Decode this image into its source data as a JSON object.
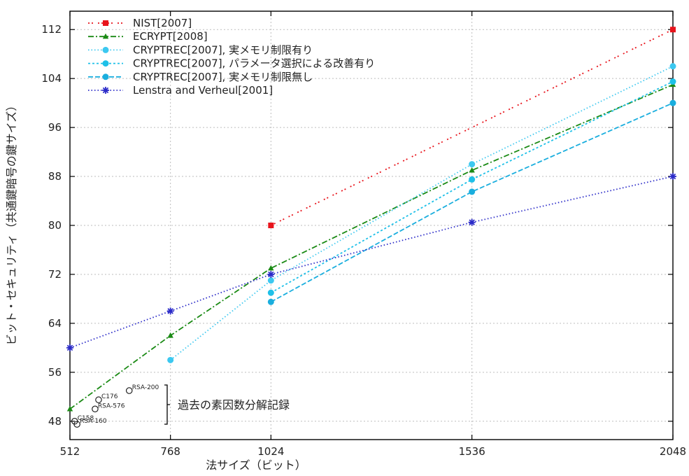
{
  "chart_data": {
    "type": "line",
    "xlabel": "法サイズ（ビット）",
    "ylabel": "ビット・セキュリティ（共通鍵暗号の鍵サイズ）",
    "x_ticks": [
      512,
      768,
      1024,
      1536,
      2048
    ],
    "y_ticks": [
      48,
      56,
      64,
      72,
      80,
      88,
      96,
      104,
      112
    ],
    "xlim": [
      512,
      2048
    ],
    "ylim": [
      45,
      115
    ],
    "grid": true,
    "legend_position": "top-left",
    "series": [
      {
        "name": "NIST[2007]",
        "color": "#e8141c",
        "marker": "square",
        "dash": "dotdot",
        "points": [
          [
            1024,
            80
          ],
          [
            2048,
            112
          ]
        ]
      },
      {
        "name": "ECRYPT[2008]",
        "color": "#1a8a14",
        "marker": "triangle",
        "dash": "dashdot",
        "points": [
          [
            512,
            50
          ],
          [
            768,
            62
          ],
          [
            1024,
            73
          ],
          [
            1536,
            89
          ],
          [
            2048,
            103
          ]
        ]
      },
      {
        "name": "CRYPTREC[2007], 実メモリ制限有り",
        "color": "#3cc8f0",
        "marker": "circle",
        "dash": "dot",
        "points": [
          [
            768,
            58
          ],
          [
            1024,
            71
          ],
          [
            1536,
            90
          ],
          [
            2048,
            106
          ]
        ]
      },
      {
        "name": "CRYPTREC[2007], パラメータ選択による改善有り",
        "color": "#1ec0e8",
        "marker": "circle",
        "dash": "shortdash",
        "points": [
          [
            1024,
            69
          ],
          [
            1536,
            87.5
          ],
          [
            2048,
            103.5
          ]
        ]
      },
      {
        "name": "CRYPTREC[2007], 実メモリ制限無し",
        "color": "#1aaede",
        "marker": "circle",
        "dash": "dash",
        "points": [
          [
            1024,
            67.5
          ],
          [
            1536,
            85.5
          ],
          [
            2048,
            100
          ]
        ]
      },
      {
        "name": "Lenstra and Verheul[2001]",
        "color": "#2a2ac8",
        "marker": "star",
        "dash": "dot",
        "points": [
          [
            512,
            60
          ],
          [
            768,
            66
          ],
          [
            1024,
            72
          ],
          [
            1536,
            80.5
          ],
          [
            2048,
            88
          ]
        ]
      }
    ],
    "factorization_records": [
      {
        "label": "RSA-200",
        "x": 663,
        "y": 53
      },
      {
        "label": "C176",
        "x": 585,
        "y": 51.5
      },
      {
        "label": "RSA-576",
        "x": 576,
        "y": 50
      },
      {
        "label": "C158",
        "x": 524,
        "y": 48
      },
      {
        "label": "RSA-160",
        "x": 530,
        "y": 47.5
      }
    ],
    "bracket_annotation": "過去の素因数分解記録"
  }
}
